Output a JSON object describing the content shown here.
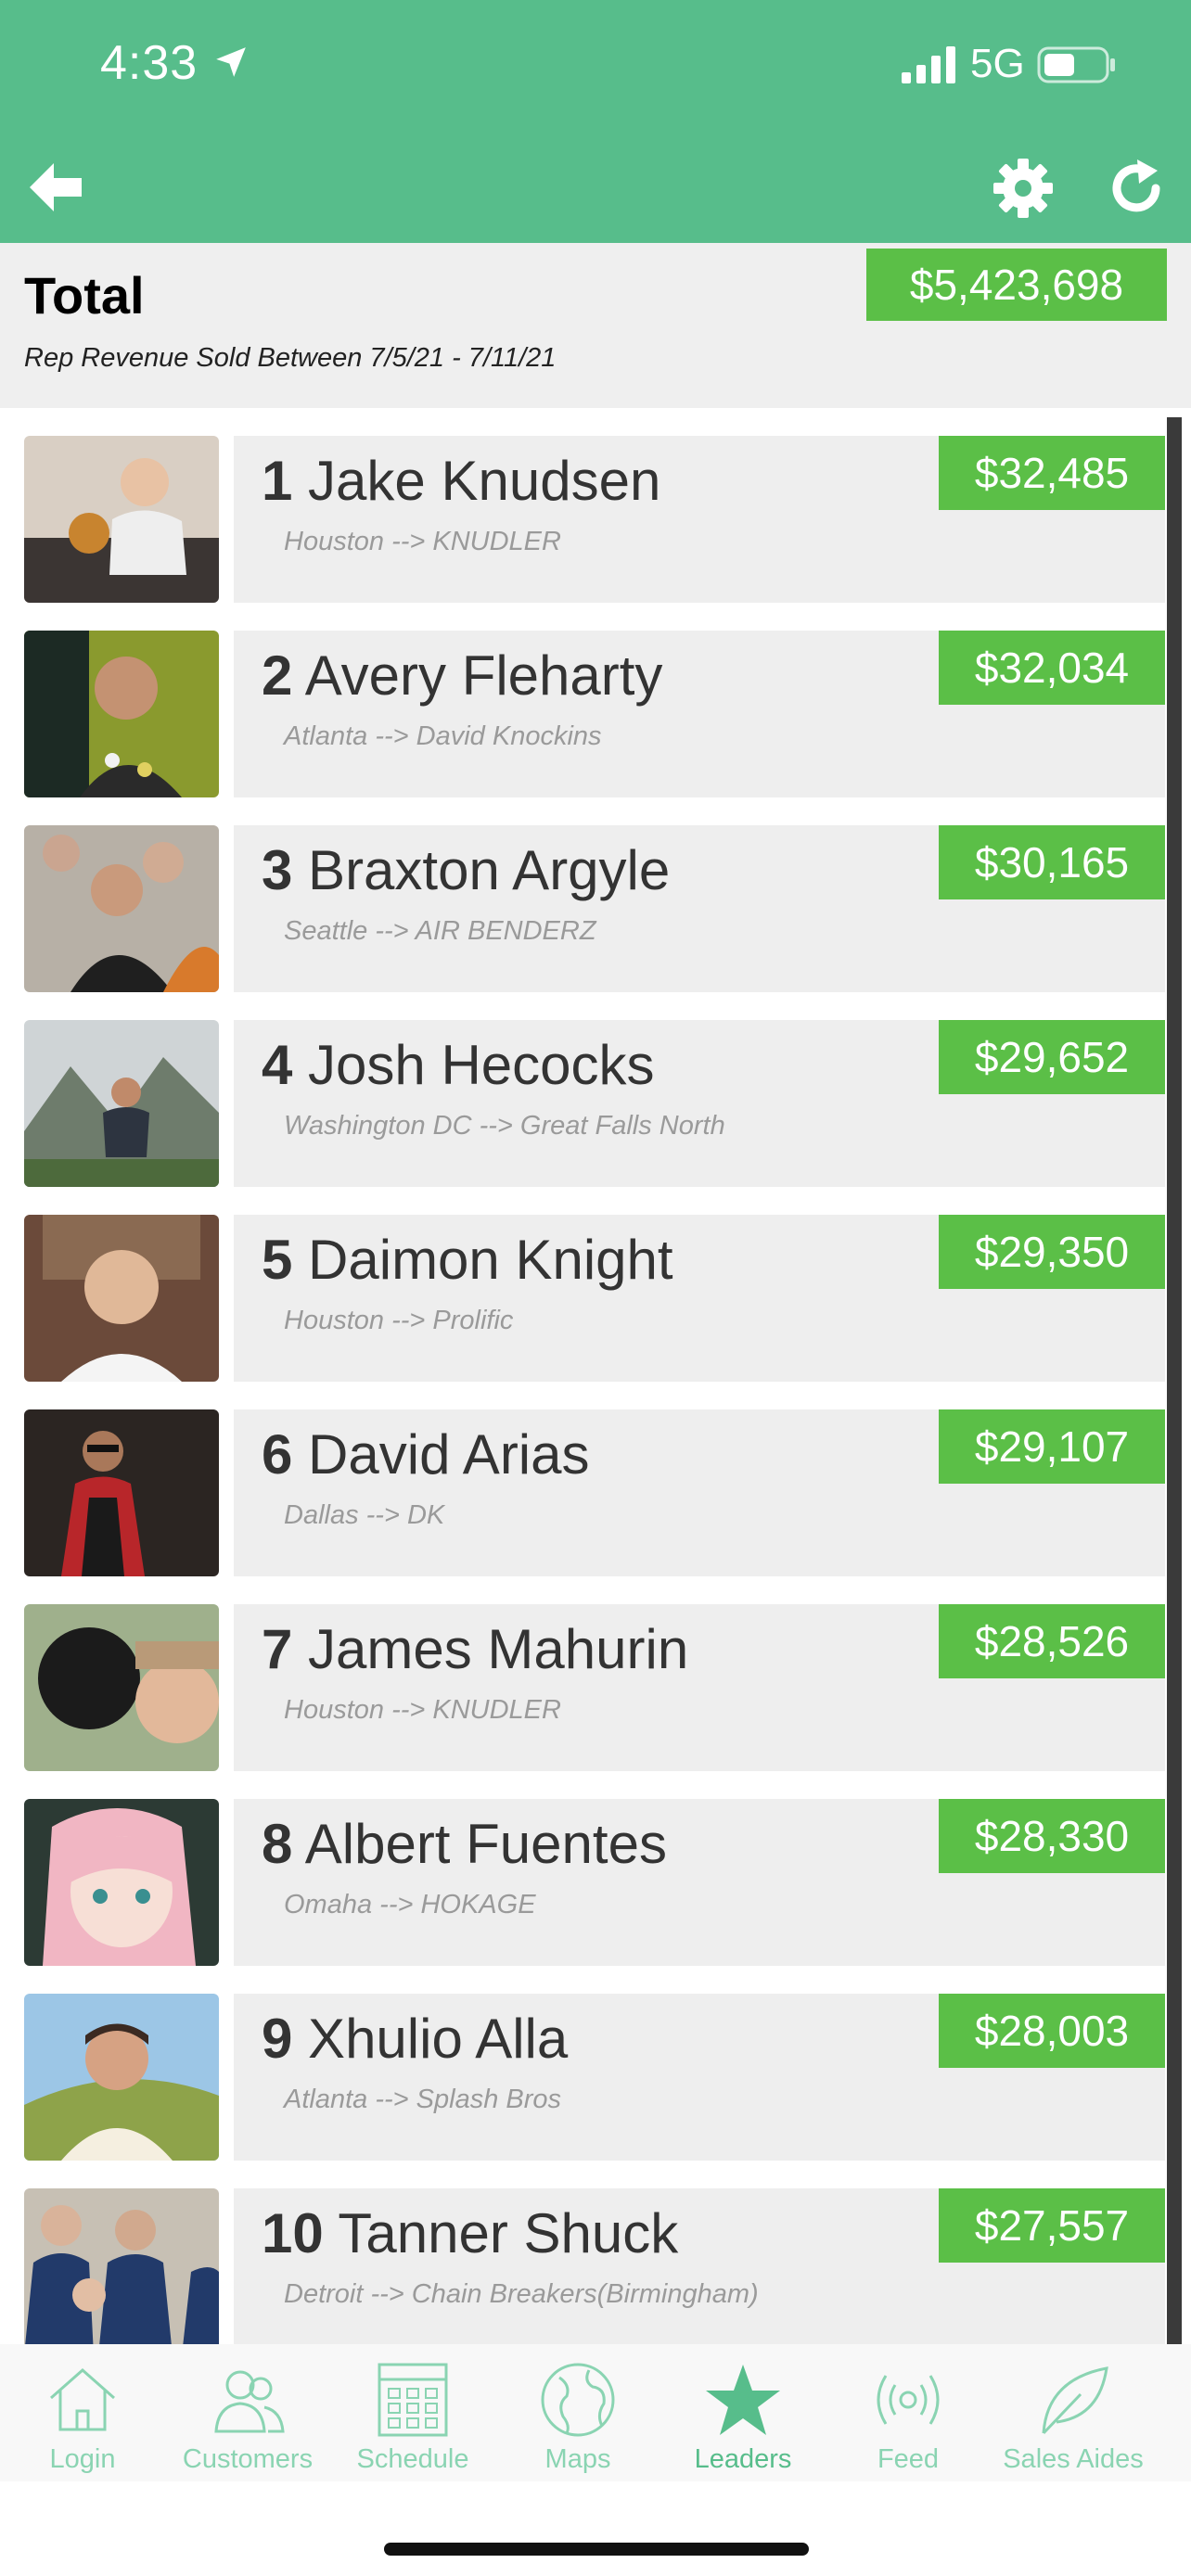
{
  "status_bar": {
    "time": "4:33",
    "network": "5G"
  },
  "total": {
    "title": "Total",
    "subtitle": "Rep Revenue Sold Between 7/5/21 - 7/11/21",
    "amount": "$5,423,698"
  },
  "reps": [
    {
      "rank": "1",
      "name": "Jake Knudsen",
      "sub": "Houston --> KNUDLER",
      "amount": "$32,485"
    },
    {
      "rank": "2",
      "name": "Avery Fleharty",
      "sub": "Atlanta --> David Knockins",
      "amount": "$32,034"
    },
    {
      "rank": "3",
      "name": "Braxton Argyle",
      "sub": "Seattle --> AIR BENDERZ",
      "amount": "$30,165"
    },
    {
      "rank": "4",
      "name": "Josh Hecocks",
      "sub": "Washington DC --> Great Falls North",
      "amount": "$29,652"
    },
    {
      "rank": "5",
      "name": "Daimon Knight",
      "sub": "Houston --> Prolific",
      "amount": "$29,350"
    },
    {
      "rank": "6",
      "name": "David Arias",
      "sub": "Dallas --> DK",
      "amount": "$29,107"
    },
    {
      "rank": "7",
      "name": "James Mahurin",
      "sub": "Houston --> KNUDLER",
      "amount": "$28,526"
    },
    {
      "rank": "8",
      "name": "Albert Fuentes",
      "sub": "Omaha --> HOKAGE",
      "amount": "$28,330"
    },
    {
      "rank": "9",
      "name": "Xhulio Alla",
      "sub": "Atlanta --> Splash Bros",
      "amount": "$28,003"
    },
    {
      "rank": "10",
      "name": "Tanner Shuck",
      "sub": "Detroit --> Chain Breakers(Birmingham)",
      "amount": "$27,557"
    }
  ],
  "tabs": [
    {
      "label": "Login",
      "icon": "house-icon"
    },
    {
      "label": "Customers",
      "icon": "people-icon"
    },
    {
      "label": "Schedule",
      "icon": "calendar-icon"
    },
    {
      "label": "Maps",
      "icon": "globe-icon"
    },
    {
      "label": "Leaders",
      "icon": "star-icon",
      "active": true
    },
    {
      "label": "Feed",
      "icon": "broadcast-icon"
    },
    {
      "label": "Sales Aides",
      "icon": "leaf-icon"
    }
  ],
  "colors": {
    "header_bg": "#57bd8b",
    "amount_bg": "#5bbf47",
    "card_bg": "#eeeeee",
    "tab_active": "#57bd8b",
    "tab_inactive": "#8ad4b2"
  }
}
